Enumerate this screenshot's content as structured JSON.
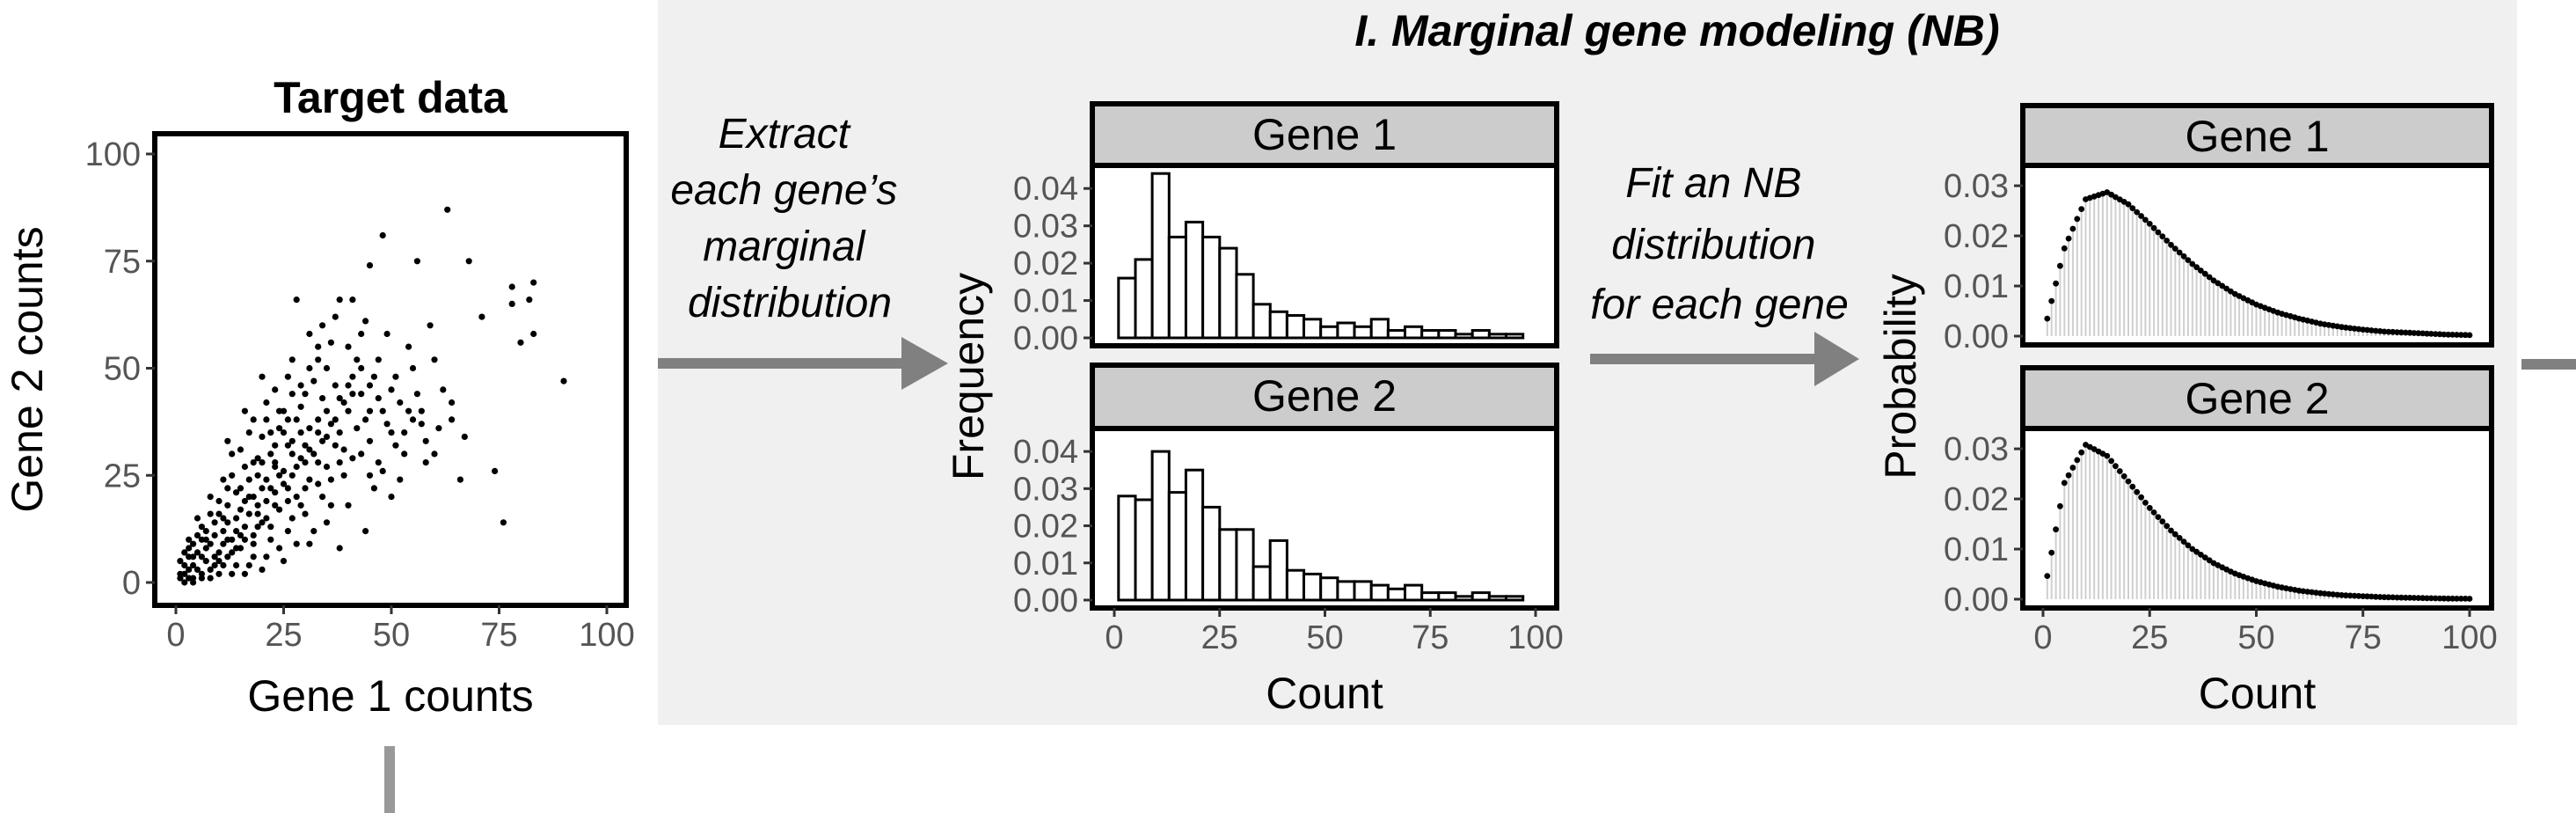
{
  "section_title": "I. Marginal gene modeling (NB)",
  "steps": {
    "extract": [
      "Extract",
      "each gene’s",
      "marginal",
      "distribution"
    ],
    "fit": [
      "Fit an NB",
      "distribution",
      "for each gene"
    ]
  },
  "colors": {
    "panel_bg": "#f0f0f0",
    "arrow": "#808080",
    "strip_bg": "#cccccc",
    "nb_bar": "#cfcfcf"
  },
  "chart_data": [
    {
      "type": "scatter",
      "title": "Target data",
      "xlabel": "Gene 1 counts",
      "ylabel": "Gene 2 counts",
      "xlim": [
        0,
        100
      ],
      "ylim": [
        0,
        100
      ],
      "xticks": [
        "0",
        "25",
        "50",
        "75",
        "100"
      ],
      "yticks": [
        "0",
        "25",
        "50",
        "75",
        "100"
      ],
      "points": [
        [
          63,
          87
        ],
        [
          48,
          81
        ],
        [
          45,
          74
        ],
        [
          56,
          75
        ],
        [
          68,
          75
        ],
        [
          78,
          69
        ],
        [
          83,
          70
        ],
        [
          82,
          66
        ],
        [
          78,
          65
        ],
        [
          71,
          62
        ],
        [
          80,
          56
        ],
        [
          83,
          58
        ],
        [
          90,
          47
        ],
        [
          74,
          26
        ],
        [
          76,
          14
        ],
        [
          66,
          24
        ],
        [
          67,
          34
        ],
        [
          57,
          40
        ],
        [
          60,
          52
        ],
        [
          55,
          50
        ],
        [
          52,
          42
        ],
        [
          41,
          66
        ],
        [
          28,
          66
        ],
        [
          33,
          55
        ],
        [
          35,
          50
        ],
        [
          40,
          46
        ],
        [
          45,
          40
        ],
        [
          50,
          35
        ],
        [
          43,
          30
        ],
        [
          38,
          28
        ],
        [
          33,
          38
        ],
        [
          30,
          44
        ],
        [
          26,
          48
        ],
        [
          24,
          40
        ],
        [
          20,
          34
        ],
        [
          18,
          28
        ],
        [
          15,
          22
        ],
        [
          12,
          18
        ],
        [
          9,
          14
        ],
        [
          6,
          10
        ],
        [
          4,
          6
        ],
        [
          2,
          4
        ],
        [
          1,
          2
        ],
        [
          3,
          1
        ],
        [
          5,
          3
        ],
        [
          7,
          5
        ],
        [
          8,
          9
        ],
        [
          10,
          7
        ],
        [
          11,
          12
        ],
        [
          13,
          10
        ],
        [
          14,
          15
        ],
        [
          16,
          13
        ],
        [
          17,
          20
        ],
        [
          19,
          18
        ],
        [
          21,
          24
        ],
        [
          22,
          22
        ],
        [
          23,
          28
        ],
        [
          25,
          26
        ],
        [
          26,
          32
        ],
        [
          27,
          30
        ],
        [
          29,
          35
        ],
        [
          30,
          28
        ],
        [
          31,
          24
        ],
        [
          28,
          20
        ],
        [
          24,
          17
        ],
        [
          20,
          14
        ],
        [
          18,
          11
        ],
        [
          15,
          8
        ],
        [
          12,
          6
        ],
        [
          9,
          4
        ],
        [
          6,
          2
        ],
        [
          4,
          1
        ],
        [
          2,
          0
        ],
        [
          10,
          2
        ],
        [
          14,
          4
        ],
        [
          18,
          6
        ],
        [
          22,
          10
        ],
        [
          26,
          12
        ],
        [
          30,
          16
        ],
        [
          34,
          20
        ],
        [
          36,
          24
        ],
        [
          38,
          35
        ],
        [
          40,
          40
        ],
        [
          42,
          52
        ],
        [
          36,
          56
        ],
        [
          31,
          58
        ],
        [
          27,
          52
        ],
        [
          23,
          45
        ],
        [
          21,
          38
        ],
        [
          17,
          35
        ],
        [
          13,
          30
        ],
        [
          11,
          24
        ],
        [
          8,
          20
        ],
        [
          5,
          15
        ],
        [
          3,
          8
        ],
        [
          1,
          5
        ],
        [
          46,
          22
        ],
        [
          50,
          20
        ],
        [
          44,
          12
        ],
        [
          38,
          8
        ],
        [
          31,
          9
        ],
        [
          25,
          5
        ],
        [
          20,
          3
        ],
        [
          16,
          2
        ],
        [
          35,
          14
        ],
        [
          40,
          18
        ],
        [
          47,
          28
        ],
        [
          53,
          30
        ],
        [
          58,
          33
        ],
        [
          62,
          45
        ],
        [
          49,
          58
        ],
        [
          44,
          61
        ],
        [
          37,
          62
        ],
        [
          32,
          47
        ],
        [
          29,
          41
        ],
        [
          26,
          38
        ],
        [
          22,
          30
        ],
        [
          19,
          25
        ],
        [
          16,
          27
        ],
        [
          14,
          21
        ],
        [
          12,
          14
        ],
        [
          10,
          16
        ],
        [
          7,
          12
        ],
        [
          5,
          7
        ],
        [
          3,
          3
        ],
        [
          6,
          6
        ],
        [
          8,
          3
        ],
        [
          11,
          9
        ],
        [
          13,
          7
        ],
        [
          15,
          11
        ],
        [
          17,
          16
        ],
        [
          19,
          13
        ],
        [
          21,
          19
        ],
        [
          23,
          21
        ],
        [
          24,
          25
        ],
        [
          26,
          22
        ],
        [
          28,
          27
        ],
        [
          30,
          32
        ],
        [
          32,
          30
        ],
        [
          34,
          33
        ],
        [
          36,
          37
        ],
        [
          38,
          43
        ],
        [
          41,
          48
        ],
        [
          43,
          44
        ],
        [
          39,
          31
        ],
        [
          35,
          27
        ],
        [
          33,
          23
        ],
        [
          29,
          18
        ],
        [
          27,
          15
        ],
        [
          22,
          13
        ],
        [
          18,
          9
        ],
        [
          9,
          11
        ],
        [
          7,
          8
        ],
        [
          4,
          4
        ],
        [
          2,
          2
        ],
        [
          12,
          22
        ],
        [
          15,
          31
        ],
        [
          18,
          38
        ],
        [
          21,
          42
        ],
        [
          24,
          36
        ],
        [
          27,
          44
        ],
        [
          31,
          50
        ],
        [
          34,
          43
        ],
        [
          37,
          46
        ],
        [
          42,
          36
        ],
        [
          45,
          33
        ],
        [
          48,
          26
        ],
        [
          52,
          24
        ],
        [
          55,
          38
        ],
        [
          58,
          28
        ],
        [
          61,
          36
        ],
        [
          64,
          42
        ],
        [
          40,
          55
        ],
        [
          46,
          48
        ],
        [
          50,
          45
        ],
        [
          54,
          55
        ],
        [
          59,
          60
        ],
        [
          10,
          19
        ],
        [
          13,
          25
        ],
        [
          16,
          19
        ],
        [
          20,
          22
        ],
        [
          23,
          32
        ],
        [
          25,
          35
        ],
        [
          28,
          38
        ],
        [
          6,
          13
        ],
        [
          8,
          16
        ],
        [
          4,
          9
        ],
        [
          3,
          6
        ],
        [
          9,
          6
        ],
        [
          11,
          4
        ],
        [
          14,
          12
        ],
        [
          17,
          24
        ],
        [
          19,
          29
        ],
        [
          22,
          35
        ],
        [
          25,
          40
        ],
        [
          29,
          46
        ],
        [
          33,
          52
        ],
        [
          20,
          48
        ],
        [
          16,
          40
        ],
        [
          12,
          33
        ],
        [
          34,
          60
        ],
        [
          38,
          66
        ],
        [
          43,
          58
        ],
        [
          47,
          52
        ],
        [
          51,
          48
        ],
        [
          56,
          44
        ],
        [
          48,
          40
        ],
        [
          44,
          38
        ],
        [
          39,
          25
        ],
        [
          36,
          18
        ],
        [
          32,
          12
        ],
        [
          28,
          9
        ],
        [
          24,
          8
        ],
        [
          21,
          6
        ],
        [
          17,
          4
        ],
        [
          13,
          2
        ],
        [
          26,
          19
        ],
        [
          30,
          22
        ],
        [
          33,
          28
        ],
        [
          37,
          32
        ],
        [
          41,
          29
        ],
        [
          45,
          25
        ],
        [
          51,
          32
        ],
        [
          54,
          40
        ],
        [
          35,
          40
        ],
        [
          31,
          36
        ],
        [
          27,
          33
        ],
        [
          23,
          27
        ],
        [
          20,
          28
        ],
        [
          18,
          20
        ],
        [
          15,
          17
        ],
        [
          11,
          15
        ],
        [
          7,
          10
        ],
        [
          5,
          11
        ],
        [
          3,
          10
        ],
        [
          2,
          7
        ],
        [
          1,
          1
        ],
        [
          4,
          0
        ],
        [
          6,
          1
        ],
        [
          8,
          1
        ],
        [
          10,
          5
        ],
        [
          12,
          10
        ],
        [
          14,
          8
        ],
        [
          16,
          10
        ],
        [
          19,
          16
        ],
        [
          21,
          15
        ],
        [
          23,
          18
        ],
        [
          25,
          23
        ],
        [
          27,
          25
        ],
        [
          29,
          29
        ],
        [
          31,
          31
        ],
        [
          33,
          35
        ],
        [
          35,
          34
        ],
        [
          37,
          38
        ],
        [
          39,
          42
        ],
        [
          41,
          44
        ],
        [
          43,
          50
        ],
        [
          45,
          46
        ],
        [
          47,
          43
        ],
        [
          49,
          37
        ],
        [
          53,
          35
        ],
        [
          57,
          37
        ],
        [
          60,
          30
        ],
        [
          64,
          38
        ]
      ]
    },
    {
      "type": "bar",
      "strip": "Gene 1",
      "ylabel": "Frequency",
      "xlabel": "",
      "xlim": [
        0,
        100
      ],
      "ylim": [
        0,
        0.045
      ],
      "xticks": [
        "0",
        "25",
        "50",
        "75",
        "100"
      ],
      "yticks": [
        "0.00",
        "0.01",
        "0.02",
        "0.03",
        "0.04"
      ],
      "bin_edges": [
        1,
        5,
        9,
        13,
        17,
        21,
        25,
        29,
        33,
        37,
        41,
        45,
        49,
        53,
        57,
        61,
        65,
        69,
        73,
        77,
        81,
        85,
        89,
        93,
        97
      ],
      "values": [
        0.016,
        0.021,
        0.044,
        0.027,
        0.031,
        0.027,
        0.024,
        0.017,
        0.009,
        0.007,
        0.006,
        0.005,
        0.003,
        0.004,
        0.003,
        0.005,
        0.002,
        0.003,
        0.002,
        0.002,
        0.001,
        0.002,
        0.001,
        0.001
      ]
    },
    {
      "type": "bar",
      "strip": "Gene 2",
      "ylabel": "Frequency",
      "xlabel": "Count",
      "xlim": [
        0,
        100
      ],
      "ylim": [
        0,
        0.045
      ],
      "xticks": [
        "0",
        "25",
        "50",
        "75",
        "100"
      ],
      "yticks": [
        "0.00",
        "0.01",
        "0.02",
        "0.03",
        "0.04"
      ],
      "bin_edges": [
        1,
        5,
        9,
        13,
        17,
        21,
        25,
        29,
        33,
        37,
        41,
        45,
        49,
        53,
        57,
        61,
        65,
        69,
        73,
        77,
        81,
        85,
        89,
        93,
        97
      ],
      "values": [
        0.028,
        0.027,
        0.04,
        0.029,
        0.035,
        0.025,
        0.019,
        0.019,
        0.009,
        0.016,
        0.008,
        0.007,
        0.006,
        0.005,
        0.005,
        0.004,
        0.003,
        0.004,
        0.002,
        0.002,
        0.001,
        0.002,
        0.001,
        0.001
      ]
    },
    {
      "type": "line",
      "strip": "Gene 1",
      "ylabel": "Probability",
      "xlabel": "",
      "xlim": [
        0,
        100
      ],
      "ylim": [
        0,
        0.033
      ],
      "xticks": [
        "0",
        "25",
        "50",
        "75",
        "100"
      ],
      "yticks": [
        "0.00",
        "0.01",
        "0.02",
        "0.03"
      ],
      "x": [
        0,
        5,
        10,
        15,
        20,
        25,
        30,
        35,
        40,
        45,
        50,
        55,
        60,
        65,
        70,
        75,
        80,
        85,
        90,
        95,
        100
      ],
      "y": [
        0.0,
        0.0175,
        0.0273,
        0.0287,
        0.0263,
        0.0224,
        0.0182,
        0.0144,
        0.0111,
        0.0084,
        0.0063,
        0.0047,
        0.0035,
        0.0025,
        0.0018,
        0.0013,
        0.0009,
        0.0007,
        0.0005,
        0.0003,
        0.0002
      ]
    },
    {
      "type": "line",
      "strip": "Gene 2",
      "ylabel": "Probability",
      "xlabel": "Count",
      "xlim": [
        0,
        100
      ],
      "ylim": [
        0,
        0.033
      ],
      "xticks": [
        "0",
        "25",
        "50",
        "75",
        "100"
      ],
      "yticks": [
        "0.00",
        "0.01",
        "0.02",
        "0.03"
      ],
      "x": [
        0,
        5,
        10,
        15,
        20,
        25,
        30,
        35,
        40,
        45,
        50,
        55,
        60,
        65,
        70,
        75,
        80,
        85,
        90,
        95,
        100
      ],
      "y": [
        0.0,
        0.0232,
        0.0308,
        0.0286,
        0.0235,
        0.0182,
        0.0137,
        0.01,
        0.0072,
        0.0051,
        0.0036,
        0.0025,
        0.0017,
        0.0012,
        0.0008,
        0.0006,
        0.0004,
        0.0003,
        0.0002,
        0.00013,
        9e-05
      ]
    }
  ]
}
